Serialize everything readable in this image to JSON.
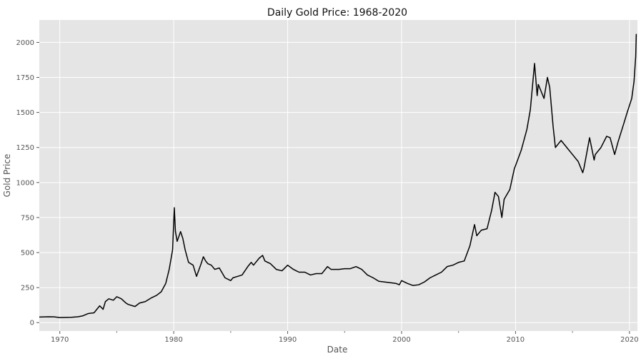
{
  "chart_data": {
    "type": "line",
    "title": "Daily Gold Price: 1968-2020",
    "xlabel": "Date",
    "ylabel": "Gold Price",
    "xlim": [
      1968.2,
      2020.7
    ],
    "ylim": [
      -60,
      2160
    ],
    "grid": true,
    "legend": "none",
    "background_color": "#E5E5E5",
    "grid_color": "#FFFFFF",
    "line_color": "#000000",
    "x_ticks": [
      1970,
      1980,
      1990,
      2000,
      2010,
      2020
    ],
    "x_tick_labels": [
      "1970",
      "1980",
      "1990",
      "2000",
      "2010",
      "2020"
    ],
    "x_minor_ticks": [
      1968,
      1975,
      1985,
      1995,
      2005,
      2015
    ],
    "y_ticks": [
      0,
      250,
      500,
      750,
      1000,
      1250,
      1500,
      1750,
      2000
    ],
    "y_tick_labels": [
      "0",
      "250",
      "500",
      "750",
      "1000",
      "1250",
      "1500",
      "1750",
      "2000"
    ],
    "series": [
      {
        "x": [
          1968.2,
          1969.0,
          1969.5,
          1970.0,
          1971.0,
          1971.6,
          1972.0,
          1972.5,
          1973.0,
          1973.5,
          1973.8,
          1974.0,
          1974.3,
          1974.7,
          1975.0,
          1975.4,
          1975.8,
          1976.0,
          1976.6,
          1977.0,
          1977.5,
          1978.0,
          1978.5,
          1978.9,
          1979.3,
          1979.6,
          1979.9,
          1980.05,
          1980.15,
          1980.3,
          1980.6,
          1980.8,
          1981.0,
          1981.3,
          1981.7,
          1982.0,
          1982.4,
          1982.6,
          1982.8,
          1983.0,
          1983.3,
          1983.6,
          1984.0,
          1984.5,
          1985.0,
          1985.2,
          1985.6,
          1986.0,
          1986.5,
          1986.8,
          1987.0,
          1987.5,
          1987.8,
          1988.0,
          1988.5,
          1989.0,
          1989.5,
          1990.0,
          1990.5,
          1991.0,
          1991.5,
          1992.0,
          1992.5,
          1993.0,
          1993.5,
          1993.8,
          1994.0,
          1994.5,
          1995.0,
          1995.5,
          1996.0,
          1996.5,
          1997.0,
          1997.5,
          1998.0,
          1998.5,
          1999.0,
          1999.5,
          1999.8,
          2000.0,
          2000.5,
          2001.0,
          2001.5,
          2002.0,
          2002.5,
          2003.0,
          2003.5,
          2004.0,
          2004.5,
          2005.0,
          2005.5,
          2006.0,
          2006.4,
          2006.6,
          2007.0,
          2007.5,
          2007.9,
          2008.2,
          2008.5,
          2008.8,
          2009.0,
          2009.5,
          2009.9,
          2010.0,
          2010.5,
          2011.0,
          2011.3,
          2011.67,
          2011.9,
          2012.0,
          2012.5,
          2012.8,
          2013.0,
          2013.3,
          2013.5,
          2013.8,
          2014.0,
          2014.5,
          2015.0,
          2015.5,
          2015.9,
          2016.0,
          2016.5,
          2016.9,
          2017.0,
          2017.5,
          2018.0,
          2018.3,
          2018.7,
          2019.0,
          2019.5,
          2019.8,
          2020.0,
          2020.2,
          2020.4,
          2020.55,
          2020.6
        ],
        "y": [
          40,
          42,
          41,
          36,
          38,
          42,
          48,
          65,
          70,
          120,
          95,
          150,
          170,
          160,
          185,
          170,
          140,
          130,
          115,
          140,
          150,
          175,
          195,
          220,
          280,
          380,
          520,
          820,
          650,
          580,
          650,
          600,
          520,
          430,
          410,
          330,
          420,
          470,
          440,
          420,
          410,
          380,
          390,
          320,
          300,
          320,
          330,
          340,
          400,
          430,
          410,
          460,
          480,
          440,
          420,
          380,
          370,
          410,
          380,
          360,
          360,
          340,
          350,
          350,
          400,
          380,
          380,
          380,
          385,
          385,
          400,
          380,
          340,
          320,
          295,
          290,
          285,
          280,
          270,
          300,
          280,
          265,
          270,
          290,
          320,
          340,
          360,
          400,
          410,
          430,
          440,
          550,
          700,
          620,
          660,
          670,
          800,
          930,
          900,
          750,
          880,
          950,
          1100,
          1120,
          1230,
          1380,
          1520,
          1850,
          1620,
          1700,
          1600,
          1750,
          1680,
          1400,
          1250,
          1280,
          1300,
          1250,
          1200,
          1150,
          1070,
          1100,
          1320,
          1160,
          1200,
          1250,
          1330,
          1320,
          1200,
          1290,
          1420,
          1500,
          1550,
          1600,
          1720,
          1900,
          2060
        ]
      }
    ]
  }
}
